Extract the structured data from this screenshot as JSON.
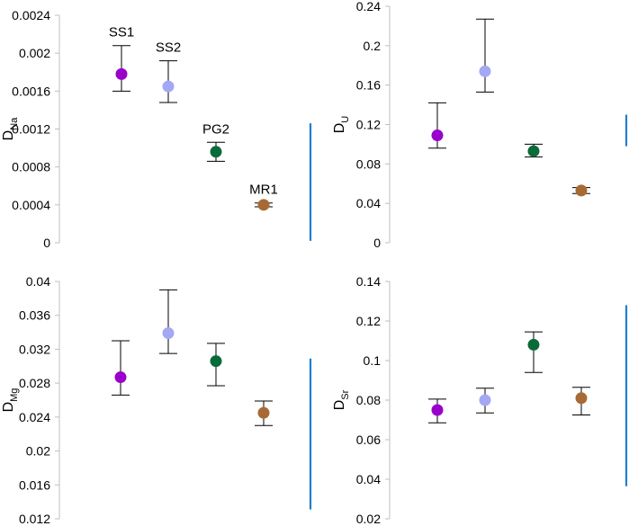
{
  "chart_data": [
    {
      "type": "scatter",
      "id": "na",
      "ylabel": "D",
      "ylabel_sub": "Na",
      "ylim": [
        0,
        0.0024
      ],
      "ticks": [
        "0",
        "0.0004",
        "0.0008",
        "0.0012",
        "0.0016",
        "0.002",
        "0.0024"
      ],
      "categories": [
        "SS1",
        "SS2",
        "PG2",
        "MR1"
      ],
      "colors": [
        "#9900cc",
        "#a3a8f5",
        "#0a6b3a",
        "#a86a34"
      ],
      "values": [
        0.00178,
        0.00165,
        0.00096,
        0.0004
      ],
      "err_high": [
        0.00208,
        0.00192,
        0.00106,
        0.00042
      ],
      "err_low": [
        0.0016,
        0.00148,
        0.00086,
        0.00038
      ],
      "labels": [
        "SS1",
        "SS2",
        "PG2",
        "MR1"
      ],
      "marker_line": {
        "y_from": 2e-05,
        "y_to": 0.00126,
        "color": "#1f7fd1"
      }
    },
    {
      "type": "scatter",
      "id": "u",
      "ylabel": "D",
      "ylabel_sub": "U",
      "ylim": [
        0,
        0.24
      ],
      "ticks": [
        "0",
        "0.04",
        "0.08",
        "0.12",
        "0.16",
        "0.2",
        "0.24"
      ],
      "categories": [
        "SS1",
        "SS2",
        "PG2",
        "MR1"
      ],
      "colors": [
        "#9900cc",
        "#a3a8f5",
        "#0a6b3a",
        "#a86a34"
      ],
      "values": [
        0.109,
        0.174,
        0.093,
        0.053
      ],
      "err_high": [
        0.142,
        0.227,
        0.1,
        0.056
      ],
      "err_low": [
        0.096,
        0.153,
        0.087,
        0.05
      ],
      "labels": [],
      "marker_line": {
        "y_from": 0.098,
        "y_to": 0.13,
        "color": "#1f7fd1"
      }
    },
    {
      "type": "scatter",
      "id": "mg",
      "ylabel": "D",
      "ylabel_sub": "Mg",
      "ylim": [
        0.012,
        0.04
      ],
      "ticks": [
        "0.012",
        "0.016",
        "0.02",
        "0.024",
        "0.028",
        "0.032",
        "0.036",
        "0.04"
      ],
      "categories": [
        "SS1",
        "SS2",
        "PG2",
        "MR1"
      ],
      "colors": [
        "#9900cc",
        "#a3a8f5",
        "#0a6b3a",
        "#a86a34"
      ],
      "values": [
        0.0287,
        0.0339,
        0.0306,
        0.0245
      ],
      "err_high": [
        0.033,
        0.039,
        0.0327,
        0.0259
      ],
      "err_low": [
        0.0266,
        0.0315,
        0.0277,
        0.023
      ],
      "labels": [],
      "marker_line": {
        "y_from": 0.0131,
        "y_to": 0.0309,
        "color": "#1f7fd1"
      }
    },
    {
      "type": "scatter",
      "id": "sr",
      "ylabel": "D",
      "ylabel_sub": "Sr",
      "ylim": [
        0.02,
        0.14
      ],
      "ticks": [
        "0.02",
        "0.04",
        "0.06",
        "0.08",
        "0.1",
        "0.12",
        "0.14"
      ],
      "categories": [
        "SS1",
        "SS2",
        "PG2",
        "MR1"
      ],
      "colors": [
        "#9900cc",
        "#a3a8f5",
        "#0a6b3a",
        "#a86a34"
      ],
      "values": [
        0.075,
        0.08,
        0.108,
        0.081
      ],
      "err_high": [
        0.0805,
        0.086,
        0.1145,
        0.0865
      ],
      "err_low": [
        0.0685,
        0.0735,
        0.094,
        0.0725
      ],
      "labels": [],
      "marker_line": {
        "y_from": 0.0365,
        "y_to": 0.128,
        "color": "#1f7fd1"
      }
    }
  ]
}
